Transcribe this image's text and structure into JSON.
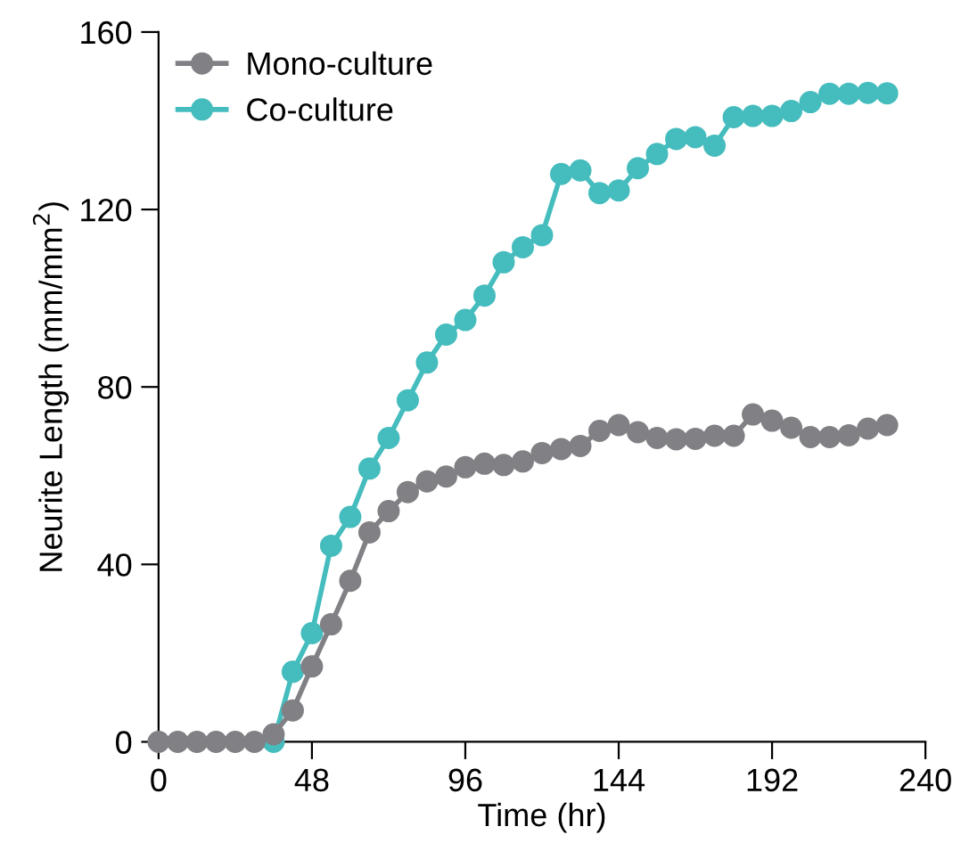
{
  "chart_data": {
    "type": "line",
    "xlabel": "Time (hr)",
    "ylabel": "Neurite Length (mm/mm$^{2}$)",
    "x": [
      0,
      6,
      12,
      18,
      24,
      30,
      36,
      42,
      48,
      54,
      60,
      66,
      72,
      78,
      84,
      90,
      96,
      102,
      108,
      114,
      120,
      126,
      132,
      138,
      144,
      150,
      156,
      162,
      168,
      174,
      180,
      186,
      192,
      198,
      204,
      210,
      216,
      222,
      228
    ],
    "series": [
      {
        "name": "Mono-culture",
        "color": "#808085",
        "values": [
          0,
          0,
          0,
          0,
          0,
          0,
          1.7,
          7.1,
          17,
          26.5,
          36.3,
          47.2,
          52,
          56.3,
          58.7,
          59.8,
          61.9,
          62.7,
          62.4,
          63.2,
          65.1,
          66,
          66.7,
          70.1,
          71.4,
          69.8,
          68.5,
          68.2,
          68.3,
          69,
          69,
          73.8,
          72.4,
          70.8,
          68.7,
          68.7,
          69.1,
          70.6,
          71.4
        ]
      },
      {
        "name": "Co-culture",
        "color": "#45bcbd",
        "values": [
          null,
          null,
          null,
          null,
          null,
          null,
          0,
          15.8,
          24.5,
          44.2,
          50.7,
          61.6,
          68.5,
          77,
          85.5,
          91.8,
          95.1,
          100.6,
          108.1,
          111.5,
          114.2,
          128,
          128.8,
          123.7,
          124.3,
          129.3,
          132.5,
          135.9,
          136.3,
          134.4,
          140.8,
          141.1,
          141.1,
          142.2,
          144.2,
          146.1,
          146.1,
          146.3,
          146.2
        ]
      }
    ],
    "xlim": [
      0,
      240
    ],
    "ylim": [
      0,
      160
    ],
    "xticks": [
      0,
      48,
      96,
      144,
      192,
      240
    ],
    "yticks": [
      0,
      40,
      80,
      120,
      160
    ],
    "marker": "circle",
    "line_style": "solid",
    "legend": "top left",
    "grid": false
  }
}
